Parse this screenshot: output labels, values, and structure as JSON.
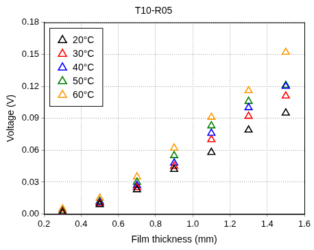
{
  "chart_data": {
    "type": "scatter",
    "title": "T10-R05",
    "x_label": "Film thickness (mm)",
    "y_label": "Voltage (V)",
    "x": [
      0.3,
      0.5,
      0.7,
      0.9,
      1.1,
      1.3,
      1.5
    ],
    "series": [
      {
        "name": "20°C",
        "color": "#000000",
        "values": [
          0.001,
          0.009,
          0.023,
          0.042,
          0.058,
          0.079,
          0.095
        ]
      },
      {
        "name": "30°C",
        "color": "#ff0000",
        "values": [
          0.002,
          0.01,
          0.025,
          0.045,
          0.07,
          0.092,
          0.111
        ]
      },
      {
        "name": "40°C",
        "color": "#0000ff",
        "values": [
          0.002,
          0.011,
          0.027,
          0.048,
          0.076,
          0.1,
          0.12
        ]
      },
      {
        "name": "50°C",
        "color": "#008000",
        "values": [
          0.003,
          0.012,
          0.03,
          0.055,
          0.083,
          0.106,
          0.121
        ]
      },
      {
        "name": "60°C",
        "color": "#ff9900",
        "values": [
          0.005,
          0.015,
          0.035,
          0.062,
          0.091,
          0.116,
          0.152
        ]
      }
    ],
    "xlim": [
      0.2,
      1.6
    ],
    "xticks": [
      0.2,
      0.4,
      0.6,
      0.8,
      {
        "value": 1,
        "label": "1.0"
      },
      1.2,
      1.4,
      1.6
    ],
    "ylim": [
      0,
      0.18
    ],
    "yticks": [
      {
        "value": 0,
        "label": "0.00"
      },
      {
        "value": 0.03,
        "label": "0.03"
      },
      {
        "value": 0.06,
        "label": "0.06"
      },
      {
        "value": 0.09,
        "label": "0.09"
      },
      {
        "value": 0.12,
        "label": "0.12"
      },
      {
        "value": 0.15,
        "label": "0.15"
      },
      {
        "value": 0.18,
        "label": "0.18"
      }
    ],
    "marker": "triangle",
    "grid": true,
    "legend": "upper left"
  }
}
